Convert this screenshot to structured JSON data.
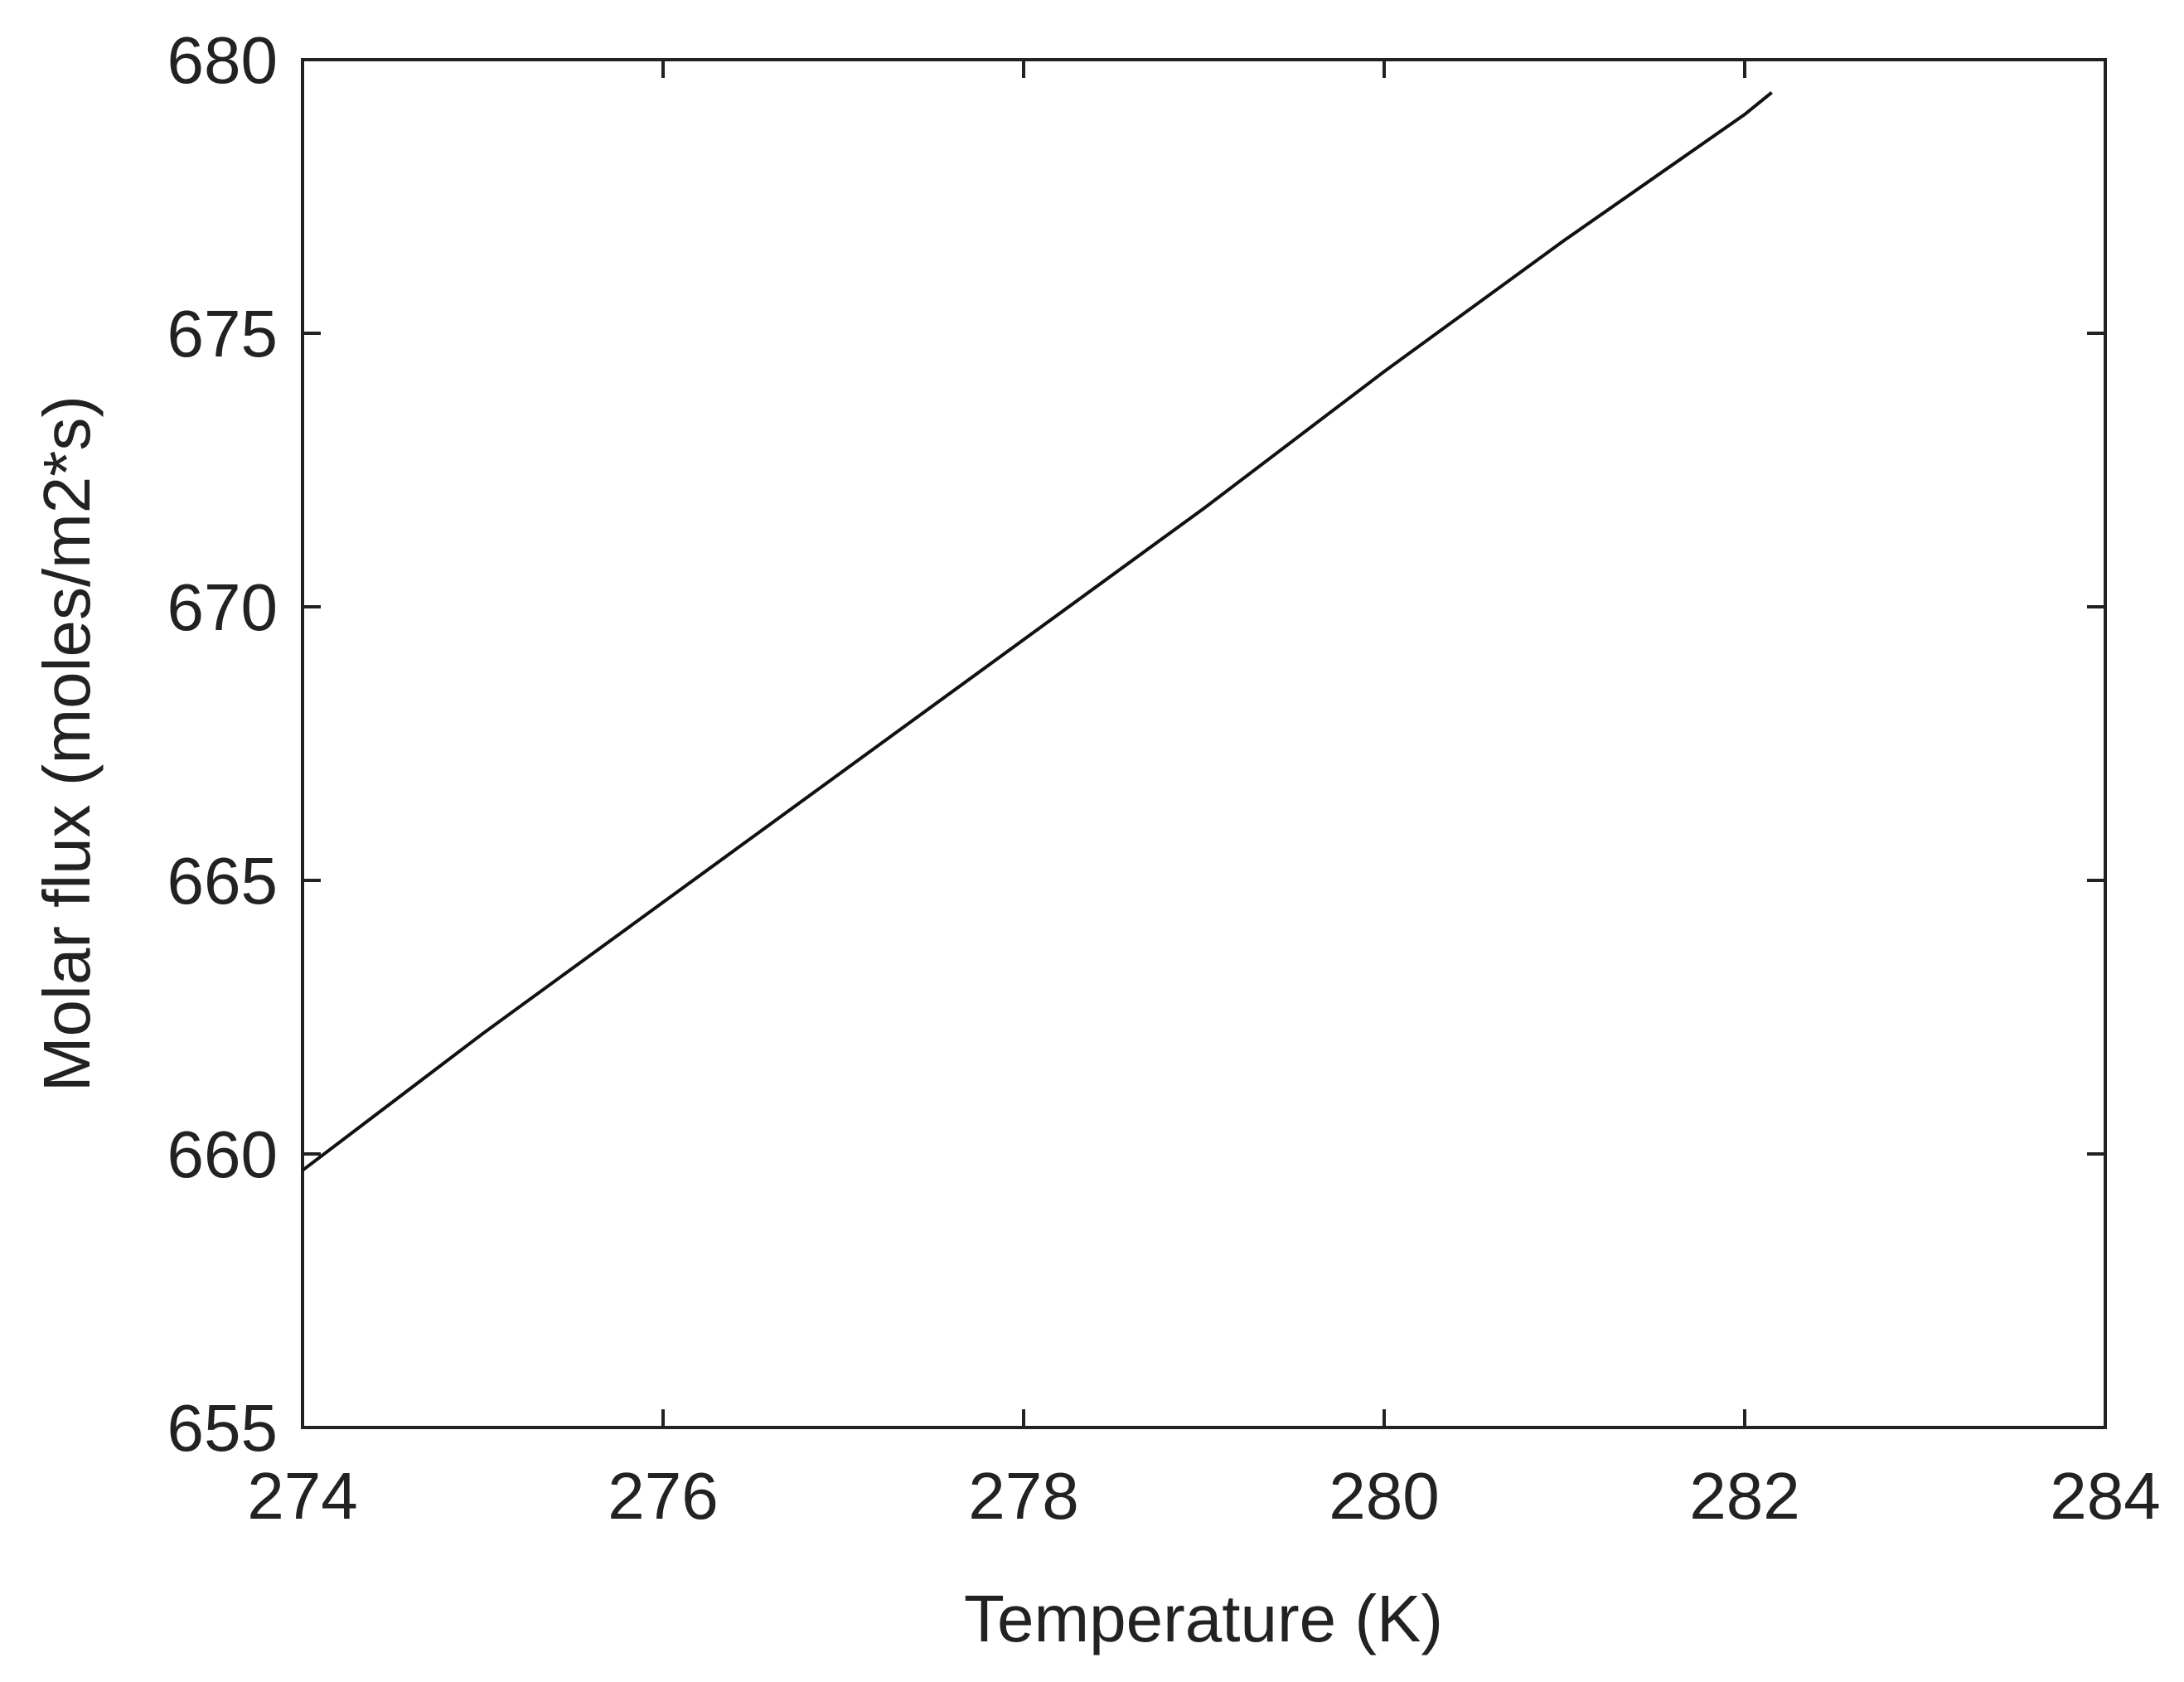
{
  "chart_data": {
    "type": "line",
    "title": "",
    "xlabel": "Temperature (K)",
    "ylabel": "Molar flux (moles/m2*s)",
    "xlim": [
      274,
      284
    ],
    "ylim": [
      655,
      680
    ],
    "xticks": [
      274,
      276,
      278,
      280,
      282,
      284
    ],
    "yticks": [
      655,
      660,
      665,
      670,
      675,
      680
    ],
    "xtick_labels": [
      "274",
      "276",
      "278",
      "280",
      "282",
      "284"
    ],
    "ytick_labels": [
      "655",
      "660",
      "665",
      "670",
      "675",
      "680"
    ],
    "grid": false,
    "legend": "none",
    "line_color": "#111111",
    "series": [
      {
        "x": [
          274.0,
          275.0,
          276.0,
          277.0,
          278.0,
          279.0,
          280.0,
          281.0,
          282.0,
          282.15
        ],
        "y": [
          659.7,
          662.2,
          664.6,
          667.0,
          669.4,
          671.8,
          674.3,
          676.7,
          679.0,
          679.4
        ]
      }
    ]
  }
}
